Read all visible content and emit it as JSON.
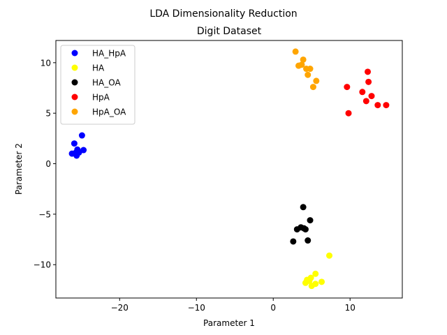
{
  "chart_data": {
    "type": "scatter",
    "suptitle": "LDA Dimensionality Reduction",
    "title": "Digit Dataset",
    "xlabel": "Parameter 1",
    "ylabel": "Parameter 2",
    "xlim": [
      -28.3,
      16.8
    ],
    "ylim": [
      -13.3,
      12.2
    ],
    "xticks": [
      -20,
      -10,
      0,
      10
    ],
    "yticks": [
      -10,
      -5,
      0,
      5,
      10
    ],
    "xtick_labels": [
      "−20",
      "−10",
      "0",
      "10"
    ],
    "ytick_labels": [
      "−10",
      "−5",
      "0",
      "5",
      "10"
    ],
    "grid": false,
    "legend_position": "top-left",
    "series": [
      {
        "name": "HA_HpA",
        "color": "#0000ff",
        "points": [
          [
            -24.9,
            2.8
          ],
          [
            -25.9,
            2.0
          ],
          [
            -25.5,
            1.4
          ],
          [
            -25.7,
            1.1
          ],
          [
            -24.7,
            1.35
          ],
          [
            -26.2,
            1.0
          ],
          [
            -25.6,
            0.8
          ],
          [
            -25.3,
            1.1
          ]
        ]
      },
      {
        "name": "HA",
        "color": "#ffff00",
        "points": [
          [
            7.3,
            -9.1
          ],
          [
            5.5,
            -10.9
          ],
          [
            4.9,
            -11.3
          ],
          [
            4.4,
            -11.5
          ],
          [
            6.3,
            -11.7
          ],
          [
            4.2,
            -11.8
          ],
          [
            5.0,
            -12.1
          ],
          [
            5.5,
            -11.9
          ],
          [
            4.7,
            -11.6
          ]
        ]
      },
      {
        "name": "HA_OA",
        "color": "#000000",
        "points": [
          [
            3.9,
            -4.3
          ],
          [
            4.8,
            -5.6
          ],
          [
            3.6,
            -6.3
          ],
          [
            3.1,
            -6.5
          ],
          [
            4.2,
            -6.5
          ],
          [
            4.0,
            -6.4
          ],
          [
            4.5,
            -7.6
          ],
          [
            2.6,
            -7.7
          ]
        ]
      },
      {
        "name": "HpA",
        "color": "#ff0000",
        "points": [
          [
            12.3,
            9.1
          ],
          [
            12.4,
            8.1
          ],
          [
            9.6,
            7.6
          ],
          [
            11.6,
            7.1
          ],
          [
            12.8,
            6.7
          ],
          [
            12.1,
            6.2
          ],
          [
            13.6,
            5.8
          ],
          [
            14.7,
            5.8
          ],
          [
            9.8,
            5.0
          ]
        ]
      },
      {
        "name": "HpA_OA",
        "color": "#ffa500",
        "points": [
          [
            2.9,
            11.1
          ],
          [
            3.9,
            10.3
          ],
          [
            3.3,
            9.7
          ],
          [
            3.7,
            9.8
          ],
          [
            4.3,
            9.4
          ],
          [
            4.8,
            9.4
          ],
          [
            4.5,
            8.8
          ],
          [
            5.6,
            8.2
          ],
          [
            5.2,
            7.6
          ]
        ]
      }
    ]
  }
}
